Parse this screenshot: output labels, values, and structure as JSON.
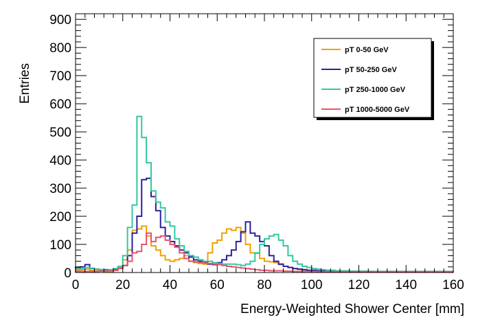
{
  "chart_data": {
    "type": "step-histogram",
    "xlabel": "Energy-Weighted Shower Center [mm]",
    "ylabel": "Entries",
    "xlim": [
      0,
      160
    ],
    "ylim": [
      0,
      920
    ],
    "x_ticks": [
      0,
      20,
      40,
      60,
      80,
      100,
      120,
      140,
      160
    ],
    "y_ticks": [
      0,
      100,
      200,
      300,
      400,
      500,
      600,
      700,
      800,
      900
    ],
    "grid": false,
    "legend_position": "top-right",
    "bin_width": 2,
    "series": [
      {
        "name": "pT 0-50 GeV",
        "color": "#f0a000",
        "values": [
          8,
          10,
          12,
          8,
          6,
          6,
          4,
          4,
          8,
          20,
          45,
          80,
          150,
          155,
          165,
          130,
          95,
          80,
          60,
          45,
          40,
          45,
          50,
          60,
          40,
          35,
          32,
          30,
          70,
          105,
          115,
          140,
          155,
          150,
          160,
          140,
          100,
          70,
          68,
          50,
          40,
          38,
          35,
          28,
          22,
          18,
          14,
          12,
          10,
          8,
          8,
          6,
          6,
          6,
          5,
          5,
          4,
          4,
          4,
          4,
          4,
          3,
          3,
          3,
          3,
          3,
          3,
          3,
          3,
          3,
          3,
          3,
          3,
          3,
          3,
          3,
          3,
          3,
          3,
          3
        ]
      },
      {
        "name": "pT 50-250 GeV",
        "color": "#2a1f9e",
        "values": [
          18,
          20,
          28,
          15,
          12,
          10,
          10,
          8,
          10,
          15,
          25,
          60,
          140,
          200,
          330,
          335,
          270,
          220,
          160,
          130,
          110,
          95,
          80,
          70,
          55,
          45,
          40,
          38,
          30,
          28,
          35,
          45,
          60,
          80,
          110,
          145,
          180,
          140,
          130,
          110,
          95,
          60,
          40,
          30,
          22,
          18,
          14,
          12,
          10,
          8,
          8,
          6,
          6,
          6,
          5,
          5,
          4,
          4,
          4,
          4,
          4,
          4,
          4,
          3,
          3,
          3,
          3,
          3,
          3,
          3,
          3,
          3,
          3,
          3,
          3,
          3,
          3,
          3,
          3,
          3
        ]
      },
      {
        "name": "pT 250-1000 GeV",
        "color": "#30c8a0",
        "values": [
          12,
          14,
          18,
          14,
          12,
          10,
          8,
          10,
          14,
          22,
          60,
          160,
          240,
          555,
          480,
          390,
          290,
          250,
          230,
          180,
          165,
          120,
          95,
          75,
          60,
          55,
          45,
          40,
          40,
          35,
          32,
          30,
          30,
          30,
          28,
          25,
          30,
          40,
          70,
          100,
          120,
          130,
          135,
          115,
          95,
          60,
          40,
          30,
          22,
          18,
          14,
          12,
          10,
          8,
          8,
          6,
          6,
          6,
          5,
          5,
          5,
          5,
          4,
          4,
          4,
          4,
          4,
          4,
          4,
          4,
          4,
          4,
          4,
          4,
          4,
          4,
          4,
          4,
          4,
          4
        ]
      },
      {
        "name": "pT 1000-5000 GeV",
        "color": "#e8506a",
        "values": [
          4,
          4,
          4,
          4,
          4,
          5,
          5,
          6,
          8,
          15,
          25,
          40,
          70,
          75,
          100,
          140,
          110,
          125,
          130,
          115,
          100,
          90,
          70,
          50,
          40,
          38,
          36,
          34,
          32,
          30,
          28,
          25,
          22,
          20,
          18,
          16,
          14,
          12,
          10,
          8,
          8,
          6,
          6,
          6,
          5,
          5,
          4,
          4,
          4,
          4,
          4,
          3,
          3,
          3,
          3,
          3,
          3,
          3,
          3,
          3,
          3,
          3,
          3,
          3,
          3,
          3,
          3,
          3,
          3,
          3,
          3,
          3,
          3,
          3,
          3,
          3,
          3,
          3,
          3,
          3
        ]
      }
    ]
  }
}
